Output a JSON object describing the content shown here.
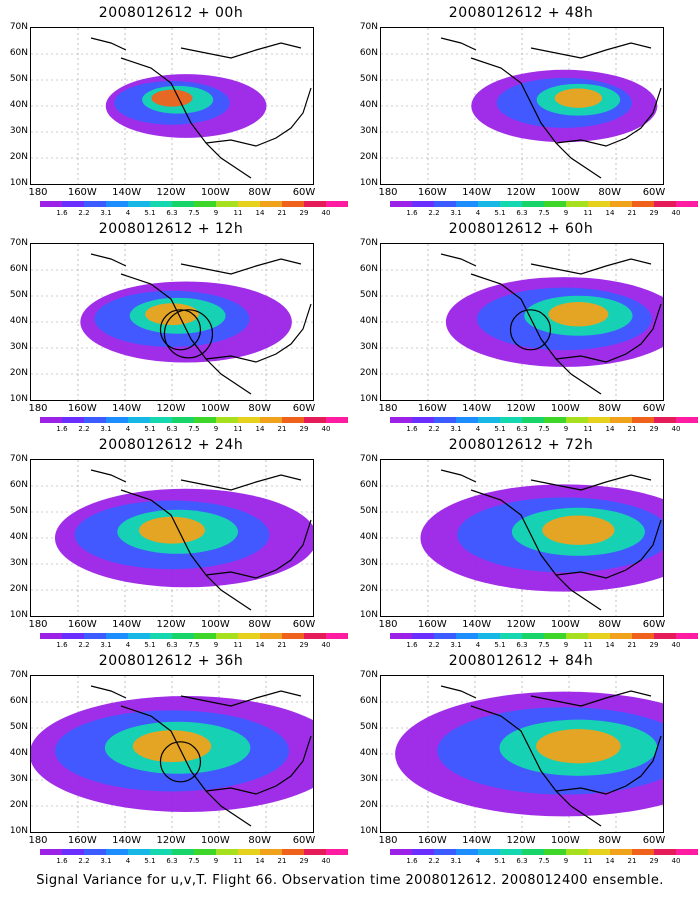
{
  "panels": [
    {
      "title": "2008012612 + 00h",
      "hotspot_level": 0.85,
      "circles": 0
    },
    {
      "title": "2008012612 + 48h",
      "hotspot_level": 0.55,
      "circles": 0
    },
    {
      "title": "2008012612 + 12h",
      "hotspot_level": 0.75,
      "circles": 2
    },
    {
      "title": "2008012612 + 60h",
      "hotspot_level": 0.55,
      "circles": 1
    },
    {
      "title": "2008012612 + 24h",
      "hotspot_level": 0.65,
      "circles": 0
    },
    {
      "title": "2008012612 + 72h",
      "hotspot_level": 0.6,
      "circles": 0
    },
    {
      "title": "2008012612 + 36h",
      "hotspot_level": 0.6,
      "circles": 1
    },
    {
      "title": "2008012612 + 84h",
      "hotspot_level": 0.7,
      "circles": 0
    }
  ],
  "lat_labels": [
    "70N",
    "60N",
    "50N",
    "40N",
    "30N",
    "20N",
    "10N"
  ],
  "lon_labels": [
    "180",
    "160W",
    "140W",
    "120W",
    "100W",
    "80W",
    "60W"
  ],
  "colorbar": {
    "labels": [
      "1.6",
      "2.2",
      "3.1",
      "4",
      "5.1",
      "6.3",
      "7.5",
      "9",
      "11",
      "14",
      "21",
      "29",
      "40"
    ],
    "colors": [
      "#9b22e6",
      "#6a2fff",
      "#3c5cff",
      "#1e8eff",
      "#17b8e6",
      "#15d8b0",
      "#19d468",
      "#3fd62a",
      "#a6e01e",
      "#e6d21c",
      "#f0a21c",
      "#f0621c",
      "#e61c5a",
      "#ff1ca0"
    ]
  },
  "footer": "Signal Variance for u,v,T. Flight 66. Observation time 2008012612. 2008012400 ensemble."
}
